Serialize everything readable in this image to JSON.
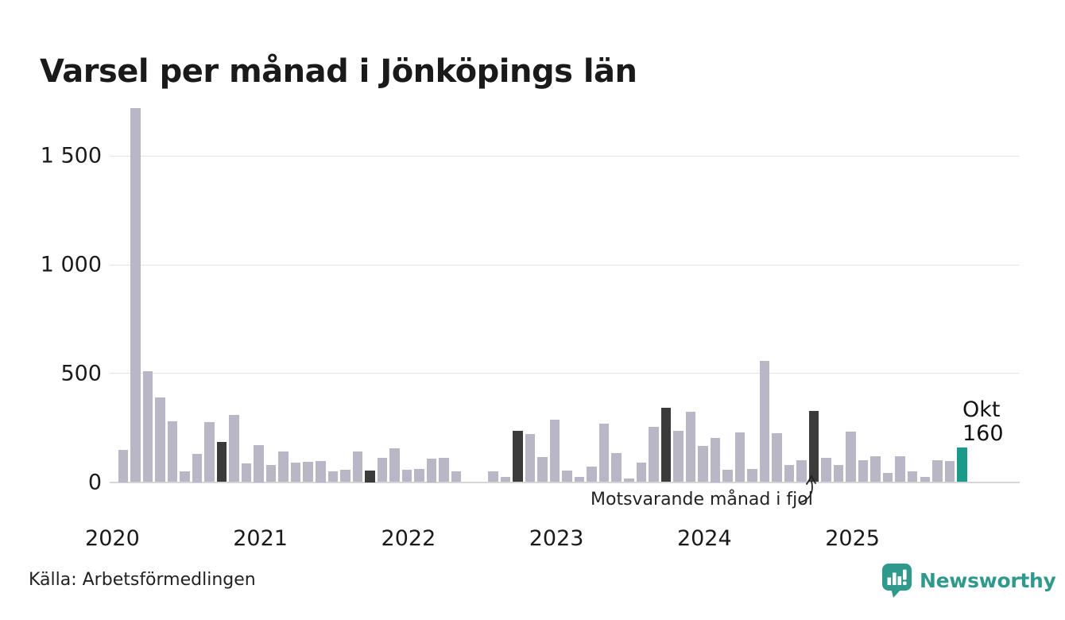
{
  "title": "Varsel per månad i Jönköpings län",
  "source": "Källa: Arbetsförmedlingen",
  "annotation": {
    "text": "Motsvarande månad i fjol"
  },
  "current_point": {
    "month_label": "Okt",
    "value_label": "160"
  },
  "branding": {
    "name": "Newsworthy",
    "icon": "newsworthy-speech-bubble-bar-chart-icon"
  },
  "colors": {
    "bar_default": "#b9b7c6",
    "bar_dark": "#3b3b3b",
    "bar_current": "#199a8b",
    "brand_teal": "#2f998b",
    "grid": "#e4e4e4",
    "axis_line": "#d6d6d6",
    "text": "#1a1a1a"
  },
  "chart_data": {
    "type": "bar",
    "title": "Varsel per månad i Jönköpings län",
    "xlabel": "",
    "ylabel": "",
    "ylim": [
      0,
      1750
    ],
    "grid": true,
    "legend_position": "none",
    "yticks": [
      0,
      500,
      1000,
      1500
    ],
    "ytick_labels": [
      "0",
      "500",
      "1 000",
      "1 500"
    ],
    "year_labels": [
      "2020",
      "2021",
      "2022",
      "2023",
      "2024",
      "2025"
    ],
    "dark_months": [
      "2020-10",
      "2021-10",
      "2022-10",
      "2023-10",
      "2024-10"
    ],
    "current_month": "2025-10",
    "months": [
      {
        "m": "2020-02",
        "v": 150
      },
      {
        "m": "2020-03",
        "v": 1720
      },
      {
        "m": "2020-04",
        "v": 510
      },
      {
        "m": "2020-05",
        "v": 390
      },
      {
        "m": "2020-06",
        "v": 280
      },
      {
        "m": "2020-07",
        "v": 50
      },
      {
        "m": "2020-08",
        "v": 130
      },
      {
        "m": "2020-09",
        "v": 275
      },
      {
        "m": "2020-10",
        "v": 185
      },
      {
        "m": "2020-11",
        "v": 310
      },
      {
        "m": "2020-12",
        "v": 85
      },
      {
        "m": "2021-01",
        "v": 172
      },
      {
        "m": "2021-02",
        "v": 80
      },
      {
        "m": "2021-03",
        "v": 140
      },
      {
        "m": "2021-04",
        "v": 90
      },
      {
        "m": "2021-05",
        "v": 92
      },
      {
        "m": "2021-06",
        "v": 97
      },
      {
        "m": "2021-07",
        "v": 48
      },
      {
        "m": "2021-08",
        "v": 57
      },
      {
        "m": "2021-09",
        "v": 140
      },
      {
        "m": "2021-10",
        "v": 55
      },
      {
        "m": "2021-11",
        "v": 110
      },
      {
        "m": "2021-12",
        "v": 155
      },
      {
        "m": "2022-01",
        "v": 58
      },
      {
        "m": "2022-02",
        "v": 60
      },
      {
        "m": "2022-03",
        "v": 108
      },
      {
        "m": "2022-04",
        "v": 113
      },
      {
        "m": "2022-05",
        "v": 50
      },
      {
        "m": "2022-06",
        "v": 0
      },
      {
        "m": "2022-07",
        "v": 0
      },
      {
        "m": "2022-08",
        "v": 48
      },
      {
        "m": "2022-09",
        "v": 25
      },
      {
        "m": "2022-10",
        "v": 235
      },
      {
        "m": "2022-11",
        "v": 220
      },
      {
        "m": "2022-12",
        "v": 115
      },
      {
        "m": "2023-01",
        "v": 288
      },
      {
        "m": "2023-02",
        "v": 54
      },
      {
        "m": "2023-03",
        "v": 23
      },
      {
        "m": "2023-04",
        "v": 70
      },
      {
        "m": "2023-05",
        "v": 268
      },
      {
        "m": "2023-06",
        "v": 135
      },
      {
        "m": "2023-07",
        "v": 15
      },
      {
        "m": "2023-08",
        "v": 88
      },
      {
        "m": "2023-09",
        "v": 255
      },
      {
        "m": "2023-10",
        "v": 343
      },
      {
        "m": "2023-11",
        "v": 235
      },
      {
        "m": "2023-12",
        "v": 324
      },
      {
        "m": "2024-01",
        "v": 168
      },
      {
        "m": "2024-02",
        "v": 205
      },
      {
        "m": "2024-03",
        "v": 57
      },
      {
        "m": "2024-04",
        "v": 227
      },
      {
        "m": "2024-05",
        "v": 59
      },
      {
        "m": "2024-06",
        "v": 558
      },
      {
        "m": "2024-07",
        "v": 224
      },
      {
        "m": "2024-08",
        "v": 77
      },
      {
        "m": "2024-09",
        "v": 100
      },
      {
        "m": "2024-10",
        "v": 327
      },
      {
        "m": "2024-11",
        "v": 112
      },
      {
        "m": "2024-12",
        "v": 80
      },
      {
        "m": "2025-01",
        "v": 232
      },
      {
        "m": "2025-02",
        "v": 100
      },
      {
        "m": "2025-03",
        "v": 118
      },
      {
        "m": "2025-04",
        "v": 41
      },
      {
        "m": "2025-05",
        "v": 118
      },
      {
        "m": "2025-06",
        "v": 48
      },
      {
        "m": "2025-07",
        "v": 25
      },
      {
        "m": "2025-08",
        "v": 100
      },
      {
        "m": "2025-09",
        "v": 98
      },
      {
        "m": "2025-10",
        "v": 160
      }
    ]
  }
}
